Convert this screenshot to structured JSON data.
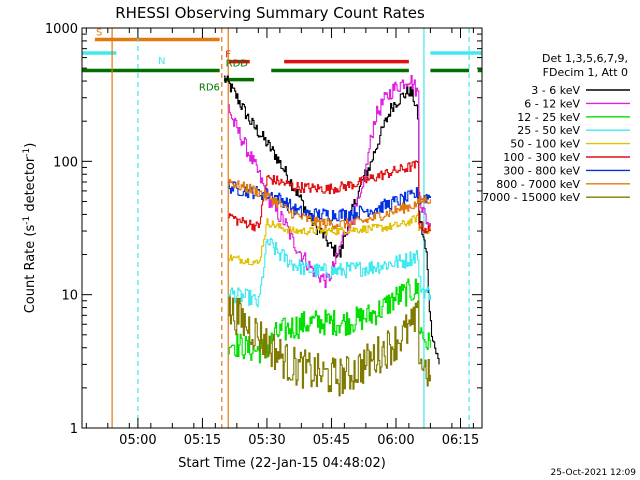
{
  "chart_data": {
    "type": "line",
    "title": "RHESSI Observing Summary Count Rates",
    "xlabel": "Start Time (22-Jan-15 04:48:02)",
    "ylabel": "Count Rate (s",
    "ylabel_sup": "-1",
    "ylabel_tail": " detector",
    "ylabel_sup2": "-1",
    "ylabel_close": ")",
    "y_scale": "log",
    "ylim": [
      1,
      1000
    ],
    "xlim_minutes": [
      -1,
      92
    ],
    "y_ticks": [
      {
        "value": 1,
        "label": "1"
      },
      {
        "value": 10,
        "label": "10"
      },
      {
        "value": 100,
        "label": "100"
      },
      {
        "value": 1000,
        "label": "1000"
      }
    ],
    "x_ticks": [
      {
        "minute": 12,
        "label": "05:00"
      },
      {
        "minute": 27,
        "label": "05:15"
      },
      {
        "minute": 42,
        "label": "05:30"
      },
      {
        "minute": 57,
        "label": "05:45"
      },
      {
        "minute": 72,
        "label": "06:00"
      },
      {
        "minute": 87,
        "label": "06:15"
      }
    ],
    "legend": {
      "header": [
        "Det 1,3,5,6,7,9,",
        "FDecim 1, Att 0"
      ],
      "placement": "right"
    },
    "footer_date": "25-Oct-2021 12:09",
    "flags": [
      {
        "label": "S",
        "color": "#e07a10",
        "y_value": 820,
        "segments": [
          [
            2,
            31
          ]
        ]
      },
      {
        "label": "N",
        "color": "#40e8f0",
        "y_value": 650,
        "segments": [
          [
            -1,
            7
          ],
          [
            80,
            92
          ]
        ]
      },
      {
        "label": "F",
        "color": "#e01010",
        "y_value": 560,
        "segments": [
          [
            33,
            38
          ],
          [
            46,
            75
          ]
        ]
      },
      {
        "label": "RDD",
        "color": "#007000",
        "y_value": 480,
        "segments": [
          [
            -1,
            31
          ],
          [
            43,
            75
          ],
          [
            80,
            89
          ],
          [
            91,
            92
          ]
        ]
      },
      {
        "label": "RD6",
        "color": "#007000",
        "y_value": 410,
        "segments": [
          [
            32,
            39
          ]
        ]
      }
    ],
    "vlines": [
      {
        "minute": 6,
        "color": "#e07a10",
        "dashed": false
      },
      {
        "minute": 31.5,
        "color": "#e07a10",
        "dashed": true
      },
      {
        "minute": 33,
        "color": "#e07a10",
        "dashed": false
      },
      {
        "minute": 12,
        "color": "#40e8f0",
        "dashed": true
      },
      {
        "minute": 89,
        "color": "#40e8f0",
        "dashed": true
      },
      {
        "minute": 78.5,
        "color": "#40e8f0",
        "dashed": false
      }
    ],
    "series": [
      {
        "name": "3 - 6 keV",
        "color": "#000000",
        "noise": 0.05,
        "points": [
          [
            32,
            420
          ],
          [
            33,
            380
          ],
          [
            35,
            300
          ],
          [
            38,
            200
          ],
          [
            41,
            150
          ],
          [
            44,
            110
          ],
          [
            47,
            75
          ],
          [
            50,
            50
          ],
          [
            53,
            33
          ],
          [
            55,
            28
          ],
          [
            57,
            22
          ],
          [
            59,
            20
          ],
          [
            60,
            28
          ],
          [
            62,
            45
          ],
          [
            64,
            70
          ],
          [
            66,
            95
          ],
          [
            67,
            120
          ],
          [
            69,
            180
          ],
          [
            71,
            260
          ],
          [
            73,
            300
          ],
          [
            75,
            340
          ],
          [
            76,
            300
          ],
          [
            77,
            220
          ],
          [
            77.3,
            40
          ],
          [
            79,
            20
          ],
          [
            80,
            6
          ],
          [
            81,
            4
          ],
          [
            82,
            3
          ]
        ]
      },
      {
        "name": "6 - 12 keV",
        "color": "#e020e0",
        "noise": 0.06,
        "points": [
          [
            33,
            260
          ],
          [
            34,
            200
          ],
          [
            36,
            150
          ],
          [
            38,
            110
          ],
          [
            40,
            80
          ],
          [
            42,
            55
          ],
          [
            44,
            42
          ],
          [
            46,
            35
          ],
          [
            48,
            25
          ],
          [
            50,
            20
          ],
          [
            52,
            16
          ],
          [
            54,
            14
          ],
          [
            56,
            12.5
          ],
          [
            58,
            18
          ],
          [
            60,
            30
          ],
          [
            62,
            40
          ],
          [
            64,
            55
          ],
          [
            66,
            140
          ],
          [
            67,
            210
          ],
          [
            69,
            280
          ],
          [
            71,
            340
          ],
          [
            73,
            380
          ],
          [
            75,
            420
          ],
          [
            76,
            380
          ],
          [
            77,
            320
          ],
          [
            77.3,
            60
          ],
          [
            78,
            45
          ],
          [
            80,
            30
          ]
        ]
      },
      {
        "name": "12 - 25 keV",
        "color": "#00e000",
        "noise": 0.1,
        "points": [
          [
            33,
            4.5
          ],
          [
            35,
            4.2
          ],
          [
            38,
            3.9
          ],
          [
            40,
            3.8
          ],
          [
            42,
            4.0
          ],
          [
            44,
            5.0
          ],
          [
            47,
            5.6
          ],
          [
            50,
            6.0
          ],
          [
            53,
            6.2
          ],
          [
            56,
            6.2
          ],
          [
            60,
            6.2
          ],
          [
            63,
            6.5
          ],
          [
            66,
            7
          ],
          [
            69,
            8
          ],
          [
            72,
            9.5
          ],
          [
            75,
            10.5
          ],
          [
            77,
            11
          ],
          [
            77.3,
            6
          ],
          [
            78,
            5
          ],
          [
            80,
            4
          ]
        ]
      },
      {
        "name": "25 - 50 keV",
        "color": "#40e8f0",
        "noise": 0.06,
        "points": [
          [
            33,
            10.5
          ],
          [
            35,
            9.8
          ],
          [
            38,
            9.5
          ],
          [
            40,
            8.5
          ],
          [
            42,
            25
          ],
          [
            45,
            20
          ],
          [
            48,
            17
          ],
          [
            51,
            15.5
          ],
          [
            54,
            15
          ],
          [
            58,
            15
          ],
          [
            62,
            15.5
          ],
          [
            66,
            16
          ],
          [
            70,
            17
          ],
          [
            74,
            18
          ],
          [
            77,
            20
          ],
          [
            77.3,
            13
          ],
          [
            78,
            11
          ],
          [
            80,
            10
          ]
        ]
      },
      {
        "name": "50 - 100 keV",
        "color": "#e0c000",
        "noise": 0.03,
        "points": [
          [
            33,
            19
          ],
          [
            35,
            18.5
          ],
          [
            38,
            18
          ],
          [
            40,
            17
          ],
          [
            42,
            35
          ],
          [
            45,
            32
          ],
          [
            48,
            30
          ],
          [
            52,
            30
          ],
          [
            58,
            30
          ],
          [
            64,
            31
          ],
          [
            70,
            32
          ],
          [
            74,
            34
          ],
          [
            77,
            38
          ],
          [
            77.3,
            32
          ],
          [
            80,
            30
          ]
        ]
      },
      {
        "name": "100 - 300 keV",
        "color": "#e01010",
        "noise": 0.04,
        "points": [
          [
            33,
            40
          ],
          [
            35,
            36
          ],
          [
            38,
            34
          ],
          [
            40,
            32
          ],
          [
            42,
            75
          ],
          [
            45,
            70
          ],
          [
            48,
            65
          ],
          [
            52,
            63
          ],
          [
            56,
            62
          ],
          [
            60,
            65
          ],
          [
            64,
            70
          ],
          [
            68,
            78
          ],
          [
            72,
            85
          ],
          [
            76,
            92
          ],
          [
            77,
            95
          ],
          [
            77.3,
            35
          ],
          [
            78,
            32
          ],
          [
            80,
            30
          ]
        ]
      },
      {
        "name": "300 - 800 keV",
        "color": "#0030e0",
        "noise": 0.05,
        "points": [
          [
            33,
            65
          ],
          [
            35,
            62
          ],
          [
            37,
            60
          ],
          [
            40,
            58
          ],
          [
            43,
            56
          ],
          [
            46,
            50
          ],
          [
            49,
            42
          ],
          [
            52,
            40
          ],
          [
            56,
            40
          ],
          [
            60,
            40
          ],
          [
            64,
            42
          ],
          [
            68,
            45
          ],
          [
            72,
            50
          ],
          [
            76,
            55
          ],
          [
            77,
            58
          ],
          [
            77.3,
            52
          ],
          [
            80,
            55
          ]
        ]
      },
      {
        "name": "800 - 7000 keV",
        "color": "#e07a10",
        "noise": 0.04,
        "points": [
          [
            33,
            72
          ],
          [
            35,
            66
          ],
          [
            38,
            62
          ],
          [
            41,
            57
          ],
          [
            44,
            50
          ],
          [
            47,
            42
          ],
          [
            50,
            38
          ],
          [
            53,
            35
          ],
          [
            57,
            34
          ],
          [
            61,
            34
          ],
          [
            65,
            36
          ],
          [
            69,
            40
          ],
          [
            73,
            44
          ],
          [
            77,
            48
          ],
          [
            77.3,
            50
          ],
          [
            79,
            52
          ],
          [
            80,
            52
          ]
        ]
      },
      {
        "name": "7000 - 15000 keV",
        "color": "#807a00",
        "noise": 0.15,
        "points": [
          [
            33,
            7.5
          ],
          [
            35,
            7.0
          ],
          [
            37,
            6.0
          ],
          [
            40,
            5.0
          ],
          [
            42,
            4.2
          ],
          [
            45,
            3.5
          ],
          [
            47,
            3.0
          ],
          [
            50,
            2.8
          ],
          [
            53,
            2.6
          ],
          [
            55,
            2.5
          ],
          [
            58,
            2.4
          ],
          [
            61,
            2.5
          ],
          [
            63,
            2.8
          ],
          [
            66,
            3.2
          ],
          [
            69,
            3.8
          ],
          [
            72,
            4.5
          ],
          [
            75,
            5.5
          ],
          [
            77,
            6.5
          ],
          [
            77.3,
            4
          ],
          [
            78,
            3
          ],
          [
            80,
            2.5
          ]
        ]
      }
    ]
  }
}
